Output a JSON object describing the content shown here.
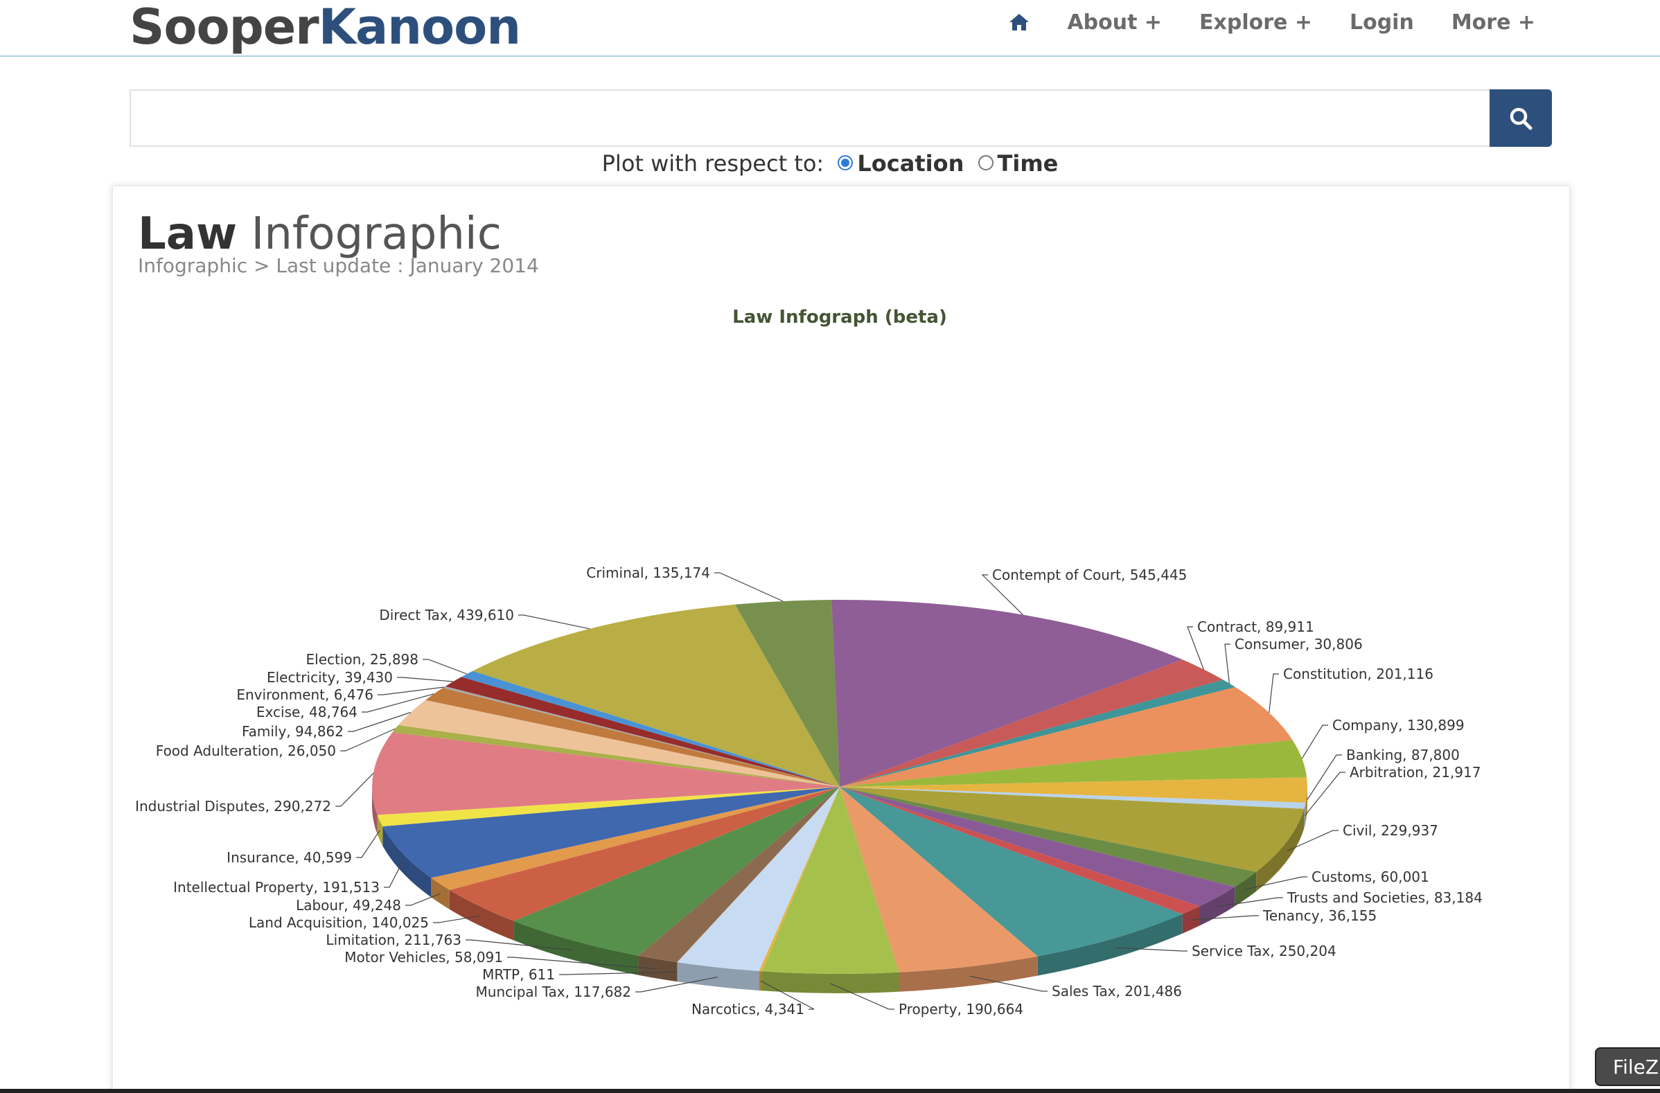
{
  "header": {
    "logo_part1": "Sooper",
    "logo_part2": "Kanoon",
    "nav": [
      {
        "label": "About +"
      },
      {
        "label": "Explore +"
      },
      {
        "label": "Login"
      },
      {
        "label": "More +"
      }
    ]
  },
  "search": {
    "value": "",
    "plot_label": "Plot with respect to:",
    "options": [
      {
        "label": "Location",
        "checked": true
      },
      {
        "label": "Time",
        "checked": false
      }
    ]
  },
  "page": {
    "title_bold": "Law",
    "title_rest": "Infographic",
    "subtitle": "Infographic > Last update : January 2014"
  },
  "taskbar": {
    "filezilla": "FileZilla"
  },
  "chart_data": {
    "type": "pie",
    "title": "Law Infograph (beta)",
    "slices": [
      {
        "name": "Contempt of Court",
        "value": 545445,
        "color": "#8f5e96"
      },
      {
        "name": "Contract",
        "value": 89911,
        "color": "#c85a5a"
      },
      {
        "name": "Consumer",
        "value": 30806,
        "color": "#3f9597"
      },
      {
        "name": "Constitution",
        "value": 201116,
        "color": "#ea915d"
      },
      {
        "name": "Company",
        "value": 130899,
        "color": "#9ab83c"
      },
      {
        "name": "Banking",
        "value": 87800,
        "color": "#e6b441"
      },
      {
        "name": "Arbitration",
        "value": 21917,
        "color": "#b8d3ea"
      },
      {
        "name": "Civil",
        "value": 229937,
        "color": "#aba13a"
      },
      {
        "name": "Customs",
        "value": 60001,
        "color": "#6b8c45"
      },
      {
        "name": "Trusts and Societies",
        "value": 83184,
        "color": "#8a5a96"
      },
      {
        "name": "Tenancy",
        "value": 36155,
        "color": "#cc5252"
      },
      {
        "name": "Service Tax",
        "value": 250204,
        "color": "#479896"
      },
      {
        "name": "Sales Tax",
        "value": 201486,
        "color": "#ea9a68"
      },
      {
        "name": "Property",
        "value": 190664,
        "color": "#a6c04c"
      },
      {
        "name": "Narcotics",
        "value": 4341,
        "color": "#e6b441"
      },
      {
        "name": "Muncipal Tax",
        "value": 117682,
        "color": "#c7dcf2"
      },
      {
        "name": "MRTP",
        "value": 611,
        "color": "#c07f3f"
      },
      {
        "name": "Motor Vehicles",
        "value": 58091,
        "color": "#8c6a4f"
      },
      {
        "name": "Limitation",
        "value": 211763,
        "color": "#57904a"
      },
      {
        "name": "Land Acquisition",
        "value": 140025,
        "color": "#cc6045"
      },
      {
        "name": "Labour",
        "value": 49248,
        "color": "#e29a4c"
      },
      {
        "name": "Intellectual Property",
        "value": 191513,
        "color": "#3f68ae"
      },
      {
        "name": "Insurance",
        "value": 40599,
        "color": "#f0e348"
      },
      {
        "name": "Industrial Disputes",
        "value": 290272,
        "color": "#e07c84"
      },
      {
        "name": "Food Adulteration",
        "value": 26050,
        "color": "#aab04a"
      },
      {
        "name": "Family",
        "value": 94862,
        "color": "#eec39a"
      },
      {
        "name": "Excise",
        "value": 48764,
        "color": "#c07a3e"
      },
      {
        "name": "Environment",
        "value": 6476,
        "color": "#a8a8a8"
      },
      {
        "name": "Electricity",
        "value": 39430,
        "color": "#962c2c"
      },
      {
        "name": "Election",
        "value": 25898,
        "color": "#4a92d4"
      },
      {
        "name": "Direct Tax",
        "value": 439610,
        "color": "#b8ae45"
      },
      {
        "name": "Criminal",
        "value": 135174,
        "color": "#77904e"
      }
    ]
  }
}
